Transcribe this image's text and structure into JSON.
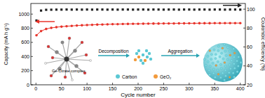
{
  "chart_data": {
    "type": "line",
    "x_label": "Cycle number",
    "y_label": "Capacity (mA h g⁻¹)",
    "y2_label": "Coulombic efficiency (%)",
    "x": [
      1,
      10,
      20,
      30,
      40,
      50,
      60,
      70,
      80,
      90,
      100,
      110,
      120,
      130,
      140,
      150,
      160,
      170,
      180,
      190,
      200,
      210,
      220,
      230,
      240,
      250,
      260,
      270,
      280,
      290,
      300,
      310,
      320,
      330,
      340,
      350,
      360,
      370,
      380,
      390,
      400
    ],
    "xlim": [
      -10,
      410
    ],
    "xticks": [
      0,
      50,
      100,
      150,
      200,
      250,
      300,
      350,
      400
    ],
    "ylim": [
      0,
      1150
    ],
    "yticks": [
      0,
      200,
      400,
      600,
      800,
      1000
    ],
    "y2lim": [
      20,
      106
    ],
    "y2ticks": [
      20,
      40,
      60,
      80,
      100
    ],
    "series": [
      {
        "name": "Capacity",
        "color": "#e8332a",
        "marker": "circle",
        "line_style": "solid",
        "values": [
          700,
          760,
          790,
          805,
          815,
          822,
          828,
          833,
          838,
          842,
          845,
          848,
          851,
          853,
          855,
          857,
          858,
          860,
          861,
          862,
          863,
          864,
          865,
          866,
          866,
          867,
          868,
          868,
          869,
          869,
          870,
          870,
          871,
          871,
          871,
          872,
          872,
          872,
          873,
          873,
          873
        ]
      },
      {
        "name": "Coulombic efficiency",
        "color": "#222222",
        "marker": "square",
        "line_style": "none",
        "axis": "y2",
        "values": [
          88,
          98.5,
          99.3,
          99.4,
          99.5,
          99.5,
          99.6,
          99.5,
          99.6,
          99.5,
          99.6,
          99.5,
          99.6,
          99.6,
          99.5,
          99.6,
          99.5,
          99.6,
          99.6,
          99.5,
          99.6,
          99.6,
          99.5,
          99.6,
          99.6,
          99.5,
          99.6,
          99.6,
          99.5,
          99.6,
          99.6,
          99.5,
          99.6,
          99.6,
          99.5,
          99.6,
          99.6,
          99.5,
          99.6,
          99.6,
          99.5
        ]
      }
    ],
    "annotations": [
      "Ge-Citrate complex",
      "Decomposition",
      "Aggregation",
      "Carbon",
      "GeO₂"
    ]
  }
}
